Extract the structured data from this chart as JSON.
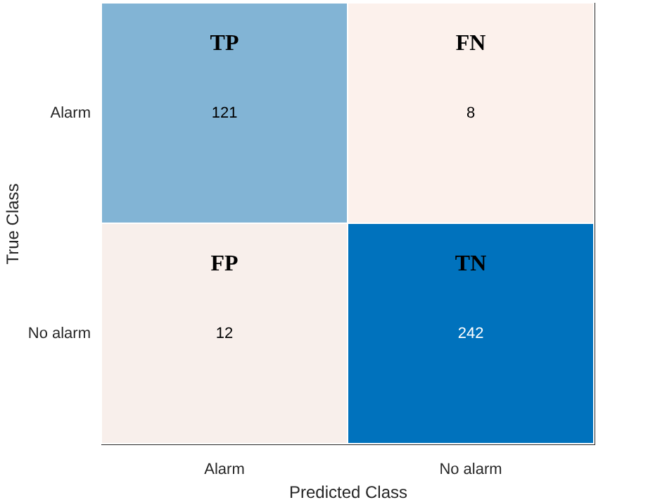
{
  "chart_data": {
    "type": "heatmap",
    "xlabel": "Predicted Class",
    "ylabel": "True Class",
    "categories": [
      "Alarm",
      "No alarm"
    ],
    "y_categories": [
      "Alarm",
      "No alarm"
    ],
    "cells": [
      [
        121,
        8
      ],
      [
        12,
        242
      ]
    ],
    "data_labels": true,
    "annotations": [
      "TP",
      "FN",
      "FP",
      "TN"
    ]
  }
}
